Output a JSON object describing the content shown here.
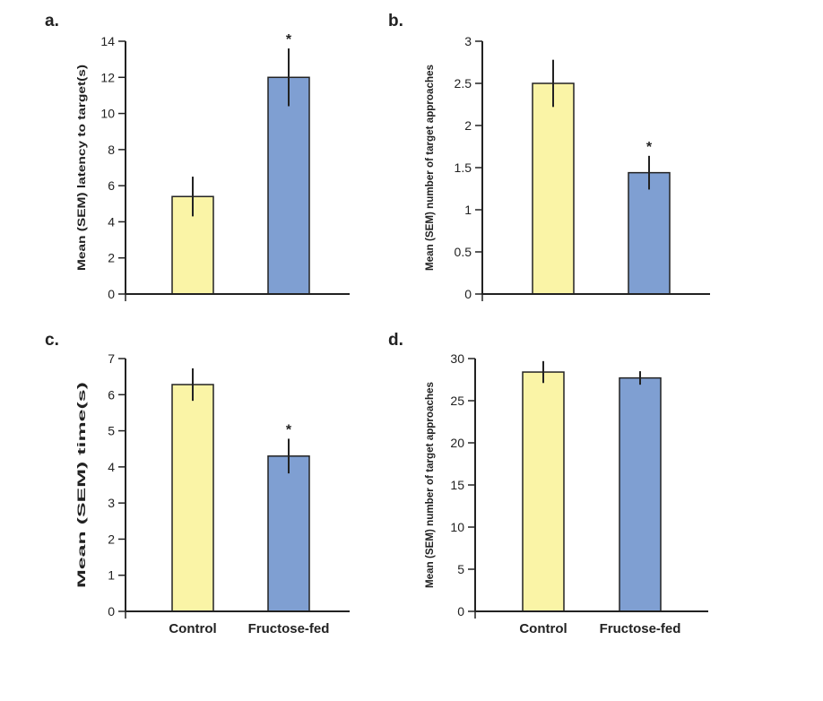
{
  "colors": {
    "control": "#faf4a6",
    "fructose": "#7f9fd2",
    "ink": "#222222"
  },
  "chart_data": [
    {
      "panel": "a.",
      "type": "bar",
      "ylabel": "Mean (SEM) latency to target(s)",
      "ylim": [
        0,
        14
      ],
      "yticks": [
        "0",
        "2",
        "4",
        "6",
        "8",
        "10",
        "12",
        "14"
      ],
      "categories": [
        "",
        ""
      ],
      "values": [
        5.4,
        12.0
      ],
      "errors": [
        1.1,
        1.6
      ],
      "significance": [
        "",
        "*"
      ]
    },
    {
      "panel": "b.",
      "type": "bar",
      "ylabel": "Mean (SEM) number of target approaches",
      "ylim": [
        0,
        3
      ],
      "yticks": [
        "0",
        "0.5",
        "1",
        "1.5",
        "2",
        "2.5",
        "3"
      ],
      "categories": [
        "",
        ""
      ],
      "values": [
        2.5,
        1.44
      ],
      "errors": [
        0.28,
        0.2
      ],
      "significance": [
        "",
        "*"
      ]
    },
    {
      "panel": "c.",
      "type": "bar",
      "ylabel": "Mean (SEM) time(s)",
      "ylim": [
        0,
        7
      ],
      "yticks": [
        "0",
        "1",
        "2",
        "3",
        "4",
        "5",
        "6",
        "7"
      ],
      "categories": [
        "Control",
        "Fructose-fed"
      ],
      "values": [
        6.28,
        4.3
      ],
      "errors": [
        0.45,
        0.48
      ],
      "significance": [
        "",
        "*"
      ]
    },
    {
      "panel": "d.",
      "type": "bar",
      "ylabel": "Mean (SEM) number of target approaches",
      "ylim": [
        0,
        30
      ],
      "yticks": [
        "0",
        "5",
        "10",
        "15",
        "20",
        "25",
        "30"
      ],
      "categories": [
        "Control",
        "Fructose-fed"
      ],
      "values": [
        28.4,
        27.7
      ],
      "errors": [
        1.3,
        0.8
      ],
      "significance": [
        "",
        ""
      ]
    }
  ]
}
